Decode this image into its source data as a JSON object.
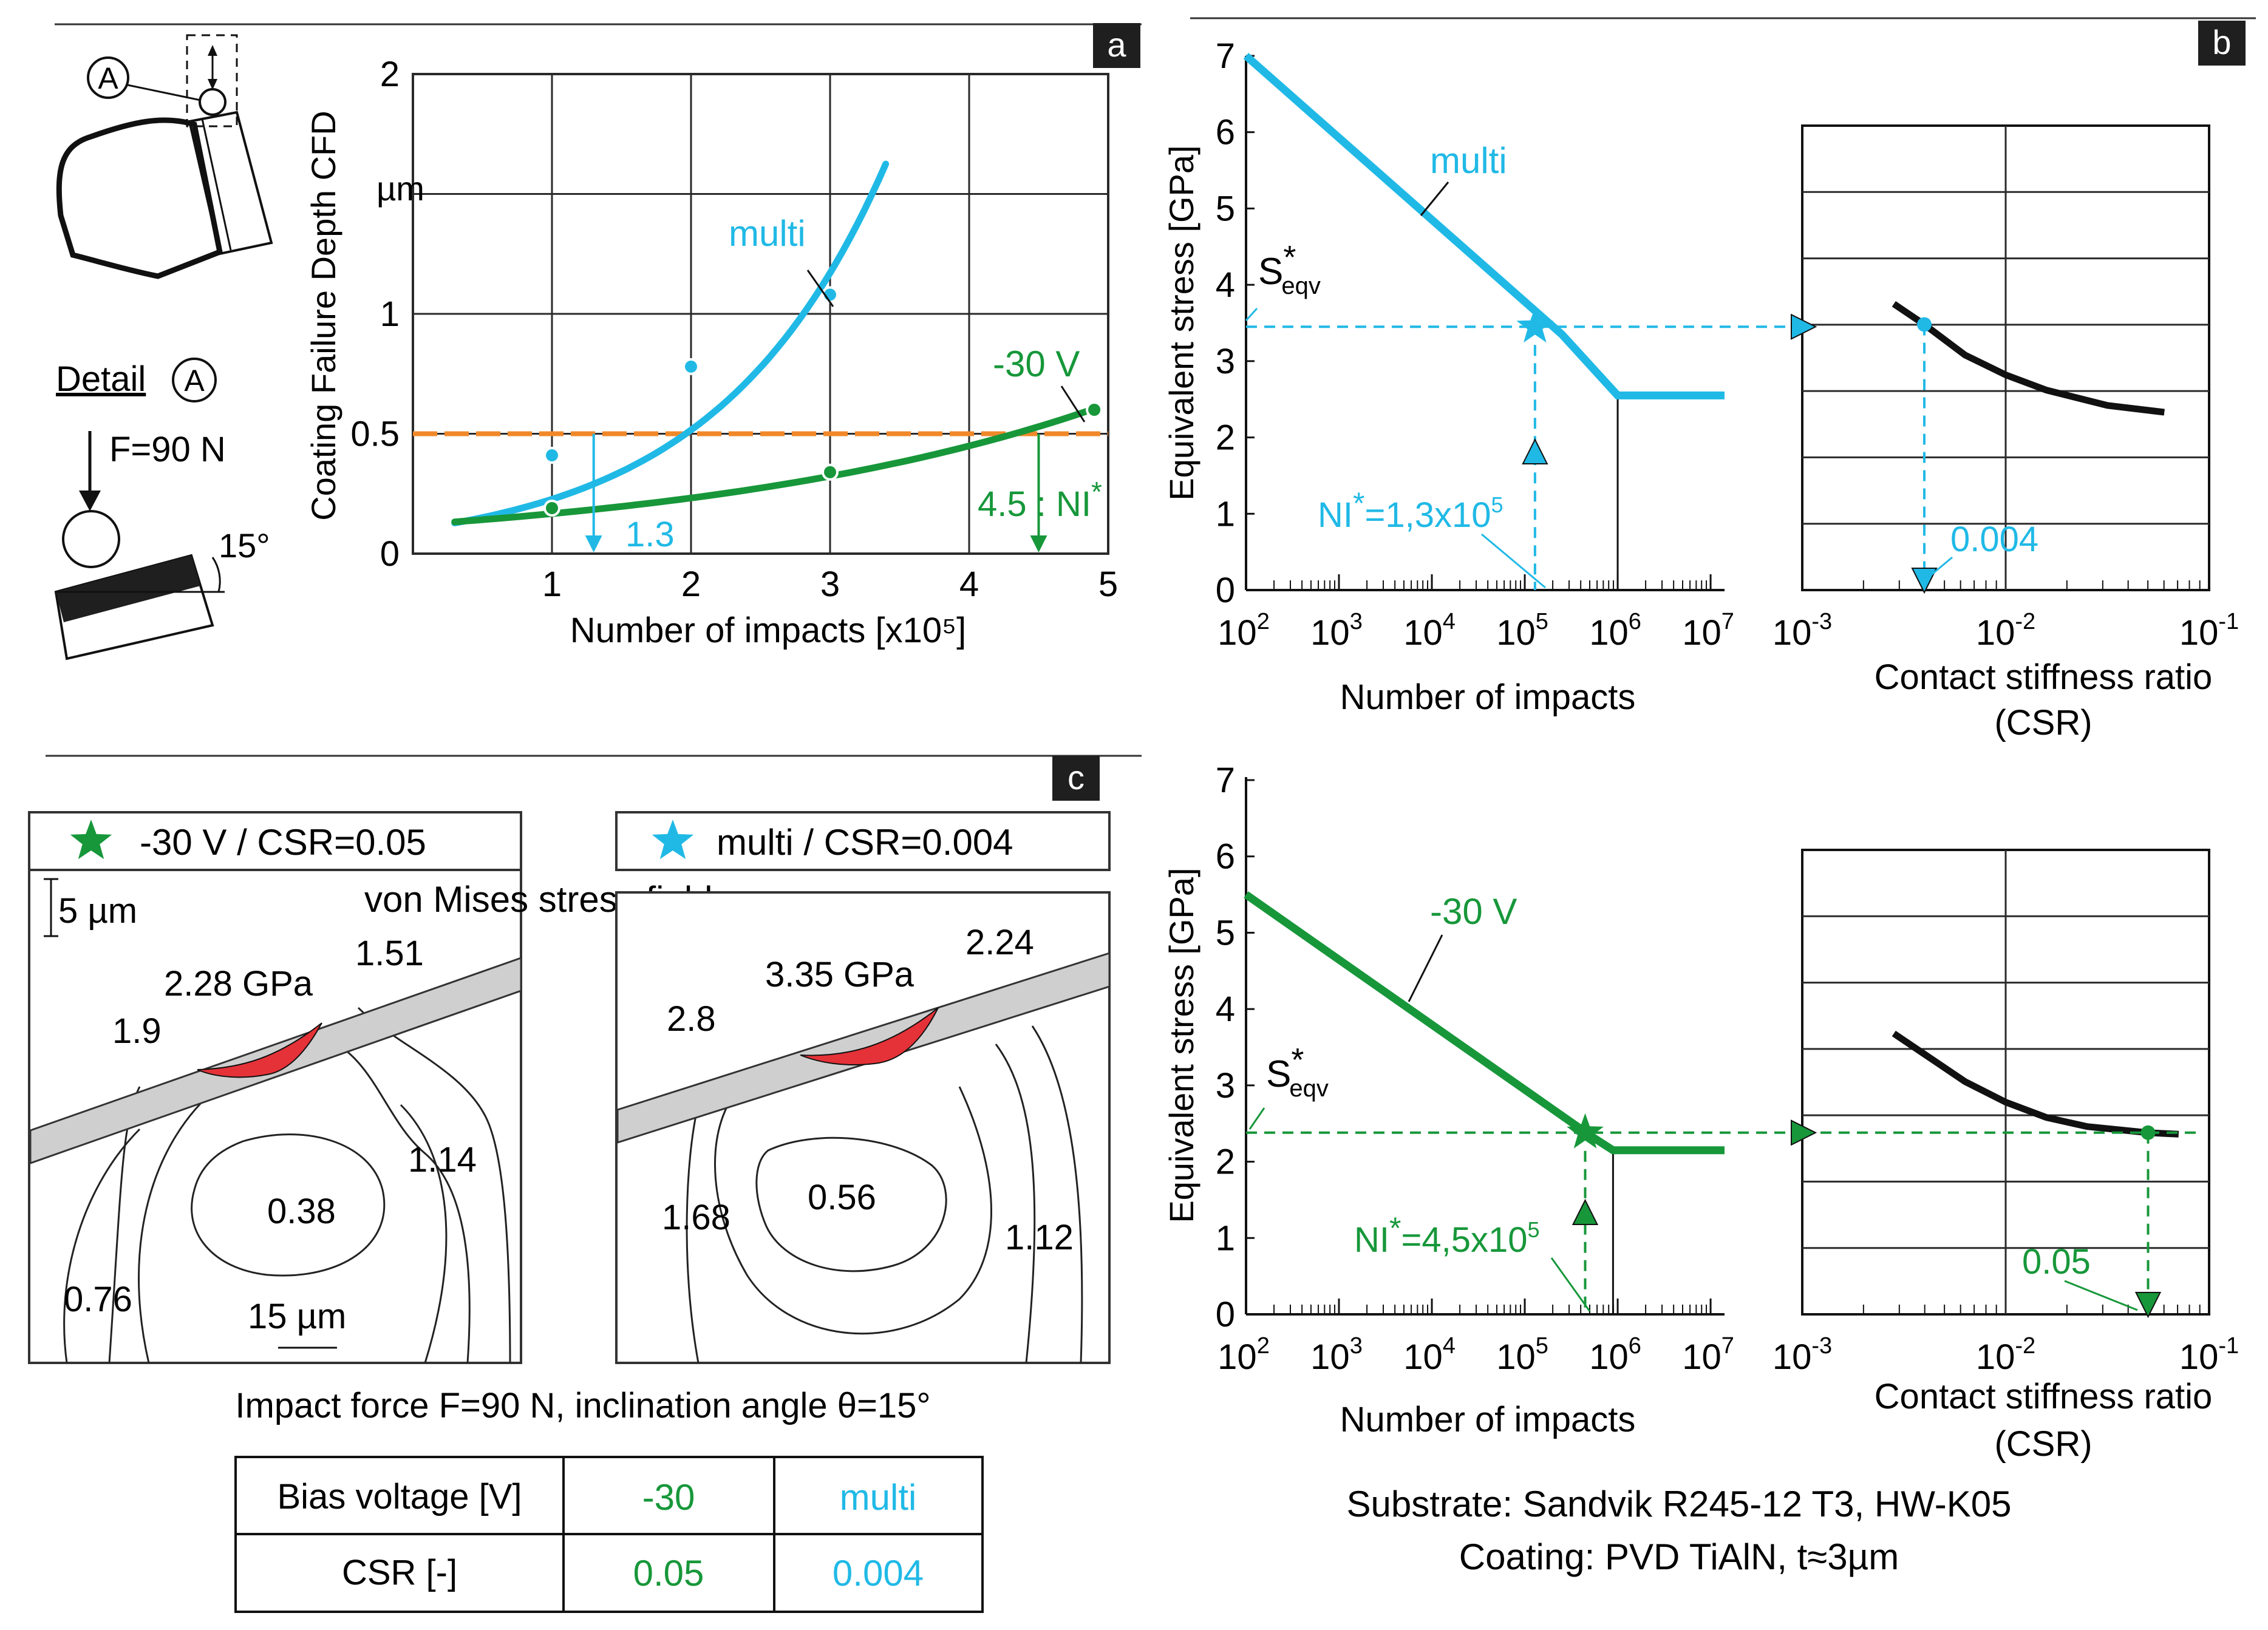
{
  "colors": {
    "cyan": "#20b9e6",
    "green": "#17973a",
    "orange": "#f0882a",
    "black": "#111111",
    "grid": "#2a2a2a",
    "coating": "#cfcfcf",
    "red": "#e53238"
  },
  "panel_labels": {
    "a": "a",
    "b": "b",
    "c": "c"
  },
  "schematic": {
    "circle_a": "A",
    "detail_label": "Detail",
    "force_label": "F=90 N",
    "angle_label": "15°"
  },
  "chart_data": [
    {
      "id": "a",
      "type": "line",
      "title": "",
      "xlabel": "Number of impacts [x10⁵]",
      "ylabel": "Coating Failure Depth CFD",
      "yunit": "µm",
      "xlim": [
        0,
        5
      ],
      "ylim": [
        0,
        2
      ],
      "x_ticks": [
        "1",
        "2",
        "3",
        "4",
        "5"
      ],
      "y_ticks": [
        "0",
        "0.5",
        "1",
        "2"
      ],
      "threshold": 0.5,
      "series": [
        {
          "name": "multi",
          "color": "cyan",
          "curve_x": [
            0.3,
            3.4
          ],
          "curve": {
            "a": 0.1,
            "b": 0.82
          },
          "points": [
            [
              1,
              0.41
            ],
            [
              2,
              0.78
            ],
            [
              3,
              1.08
            ]
          ]
        },
        {
          "name": "-30 V",
          "color": "green",
          "curve_x": [
            0.3,
            4.9
          ],
          "curve": {
            "a": 0.12,
            "b": 0.33
          },
          "points": [
            [
              1,
              0.19
            ],
            [
              3,
              0.34
            ],
            [
              4.9,
              0.6
            ]
          ]
        }
      ],
      "annotations": {
        "ni_multi": "1.3",
        "ni_multi_x": 1.3,
        "ni_30v": "4.5 : NI",
        "ni_30v_sup": "*",
        "ni_30v_x": 4.5
      }
    },
    {
      "id": "b_top",
      "type": "line",
      "xlabel": "Number of impacts",
      "ylabel": "Equivalent stress [GPa]",
      "x_log_exponents": [
        2,
        3,
        4,
        5,
        6,
        7
      ],
      "ylim": [
        0,
        7
      ],
      "y_ticks": [
        "0",
        "1",
        "2",
        "3",
        "4",
        "5",
        "6",
        "7"
      ],
      "series_name": "multi",
      "color": "cyan",
      "line": [
        [
          2,
          7.0
        ],
        [
          5.4,
          3.35
        ],
        [
          6.0,
          2.55
        ],
        [
          7.15,
          2.55
        ]
      ],
      "knee_x": 6.0,
      "star": [
        5.11,
        3.45
      ],
      "seqv": 3.45,
      "ni_label": "NI",
      "ni_sup": "*",
      "ni_text": "=1,3x10",
      "ni_exp": "5"
    },
    {
      "id": "b_top_csr",
      "type": "line",
      "xlabel": "Contact stiffness ratio",
      "xlabel2": "(CSR)",
      "x_log_exponents": [
        -3,
        -2,
        -1
      ],
      "y_rows": 7,
      "curve": [
        [
          -2.55,
          3.75
        ],
        [
          -2.4,
          3.48
        ],
        [
          -2.2,
          3.08
        ],
        [
          -2.0,
          2.82
        ],
        [
          -1.8,
          2.62
        ],
        [
          -1.5,
          2.42
        ],
        [
          -1.22,
          2.33
        ]
      ],
      "point": [
        -2.4,
        3.48
      ],
      "value_label": "0.004",
      "color": "cyan"
    },
    {
      "id": "b_bottom",
      "type": "line",
      "xlabel": "Number of impacts",
      "ylabel": "Equivalent stress [GPa]",
      "x_log_exponents": [
        2,
        3,
        4,
        5,
        6,
        7
      ],
      "ylim": [
        0,
        7
      ],
      "y_ticks": [
        "0",
        "1",
        "2",
        "3",
        "4",
        "5",
        "6",
        "7"
      ],
      "series_name": "-30 V",
      "color": "green",
      "line": [
        [
          2,
          5.5
        ],
        [
          5.72,
          2.33
        ],
        [
          5.95,
          2.15
        ],
        [
          7.15,
          2.15
        ]
      ],
      "knee_x": 5.95,
      "star": [
        5.65,
        2.38
      ],
      "seqv": 2.38,
      "ni_label": "NI",
      "ni_sup": "*",
      "ni_text": "=4,5x10",
      "ni_exp": "5"
    },
    {
      "id": "b_bottom_csr",
      "type": "line",
      "xlabel": "Contact stiffness ratio",
      "xlabel2": "(CSR)",
      "x_log_exponents": [
        -3,
        -2,
        -1
      ],
      "y_rows": 7,
      "curve": [
        [
          -2.55,
          3.68
        ],
        [
          -2.2,
          3.05
        ],
        [
          -2.0,
          2.78
        ],
        [
          -1.8,
          2.58
        ],
        [
          -1.6,
          2.46
        ],
        [
          -1.3,
          2.38
        ],
        [
          -1.15,
          2.36
        ]
      ],
      "point": [
        -1.3,
        2.38
      ],
      "value_label": "0.05",
      "color": "green"
    }
  ],
  "stress_field": {
    "legend_left": "-30 V / CSR=0.05",
    "legend_right": "multi / CSR=0.004",
    "scale_5um": "5 µm",
    "title": "von Mises stress field",
    "left_labels": {
      "peak": "2.28 GPa",
      "a": "1.51",
      "b": "1.9",
      "c": "1.14",
      "d": "0.38",
      "e": "0.76",
      "scale": "15 µm"
    },
    "right_labels": {
      "peak": "3.35 GPa",
      "a": "2.24",
      "b": "2.8",
      "c": "1.68",
      "d": "0.56",
      "e": "1.12"
    },
    "caption": "Impact force F=90 N, inclination angle θ=15°"
  },
  "table": {
    "rows": [
      [
        "Bias voltage [V]",
        "-30",
        "multi"
      ],
      [
        "CSR [-]",
        "0.05",
        "0.004"
      ]
    ]
  },
  "substrate": "Substrate: Sandvik R245-12 T3, HW-K05",
  "coating": "Coating: PVD TiAlN, t≈3µm"
}
